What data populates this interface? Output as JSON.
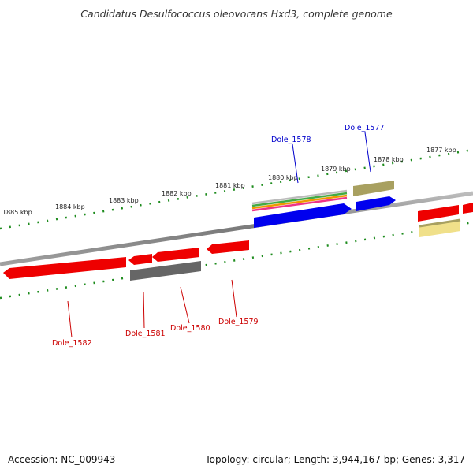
{
  "title": "Candidatus Desulfococcus oleovorans Hxd3, complete genome",
  "footer": {
    "accession": "Accession: NC_009943",
    "topology": "Topology: circular; Length: 3,944,167 bp; Genes: 3,317"
  },
  "scale_labels": [
    "1885 kbp",
    "1884 kbp",
    "1883 kbp",
    "1882 kbp",
    "1881 kbp",
    "1880 kbp",
    "1879 kbp",
    "1878 kbp",
    "1877 kbp"
  ],
  "gene_labels": [
    {
      "text": "Dole_1578",
      "color": "#0000cc"
    },
    {
      "text": "Dole_1577",
      "color": "#0000cc"
    },
    {
      "text": "Dole_1582",
      "color": "#cc0000"
    },
    {
      "text": "Dole_1581",
      "color": "#cc0000"
    },
    {
      "text": "Dole_1580",
      "color": "#cc0000"
    },
    {
      "text": "Dole_1579",
      "color": "#cc0000"
    }
  ],
  "colors": {
    "backbone": "#888888",
    "scale_ticks": "#1e8c1e",
    "forward_gene": "#0000ee",
    "reverse_gene": "#ee0000",
    "pseudo_gene": "#666666",
    "highlight_gene": "#a8a060",
    "pale_gene": "#f0e08a"
  }
}
